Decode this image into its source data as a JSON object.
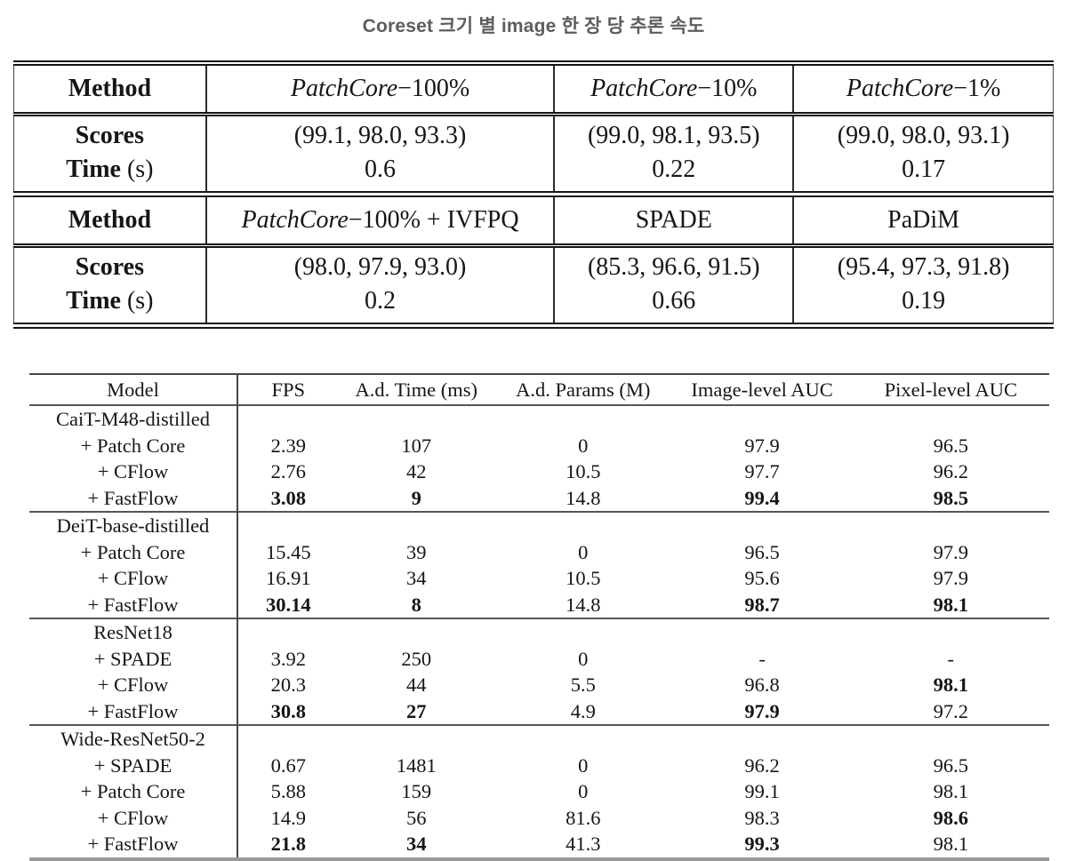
{
  "title": "Coreset 크기 별 image 한 장 당 추론 속도",
  "table1": {
    "row_labels": {
      "method": "Method",
      "scores": "Scores",
      "time": "Time",
      "time_unit": " (s)"
    },
    "sections": [
      {
        "columns": [
          {
            "method_italic": "PatchCore",
            "method_rest": "−100%",
            "scores": "(99.1, 98.0, 93.3)",
            "time": "0.6"
          },
          {
            "method_italic": "PatchCore",
            "method_rest": "−10%",
            "scores": "(99.0, 98.1, 93.5)",
            "time": "0.22"
          },
          {
            "method_italic": "PatchCore",
            "method_rest": "−1%",
            "scores": "(99.0, 98.0, 93.1)",
            "time": "0.17"
          }
        ]
      },
      {
        "columns": [
          {
            "method_italic": "PatchCore",
            "method_rest": "−100% + IVFPQ",
            "scores": "(98.0, 97.9, 93.0)",
            "time": "0.2"
          },
          {
            "method_italic": "",
            "method_rest": "SPADE",
            "scores": "(85.3, 96.6, 91.5)",
            "time": "0.66"
          },
          {
            "method_italic": "",
            "method_rest": "PaDiM",
            "scores": "(95.4, 97.3, 91.8)",
            "time": "0.19"
          }
        ]
      }
    ]
  },
  "table2": {
    "headers": [
      "Model",
      "FPS",
      "A.d. Time (ms)",
      "A.d. Params (M)",
      "Image-level AUC",
      "Pixel-level AUC"
    ],
    "groups": [
      {
        "name": "CaiT-M48-distilled",
        "rows": [
          {
            "model": "+ Patch Core",
            "cells": [
              {
                "v": "2.39"
              },
              {
                "v": "107"
              },
              {
                "v": "0"
              },
              {
                "v": "97.9"
              },
              {
                "v": "96.5"
              }
            ]
          },
          {
            "model": "+ CFlow",
            "cells": [
              {
                "v": "2.76"
              },
              {
                "v": "42"
              },
              {
                "v": "10.5"
              },
              {
                "v": "97.7"
              },
              {
                "v": "96.2"
              }
            ]
          },
          {
            "model": "+ FastFlow",
            "cells": [
              {
                "v": "3.08",
                "b": true
              },
              {
                "v": "9",
                "b": true
              },
              {
                "v": "14.8"
              },
              {
                "v": "99.4",
                "b": true
              },
              {
                "v": "98.5",
                "b": true
              }
            ]
          }
        ]
      },
      {
        "name": "DeiT-base-distilled",
        "rows": [
          {
            "model": "+ Patch Core",
            "cells": [
              {
                "v": "15.45"
              },
              {
                "v": "39"
              },
              {
                "v": "0"
              },
              {
                "v": "96.5"
              },
              {
                "v": "97.9"
              }
            ]
          },
          {
            "model": "+ CFlow",
            "cells": [
              {
                "v": "16.91"
              },
              {
                "v": "34"
              },
              {
                "v": "10.5"
              },
              {
                "v": "95.6"
              },
              {
                "v": "97.9"
              }
            ]
          },
          {
            "model": "+ FastFlow",
            "cells": [
              {
                "v": "30.14",
                "b": true
              },
              {
                "v": "8",
                "b": true
              },
              {
                "v": "14.8"
              },
              {
                "v": "98.7",
                "b": true
              },
              {
                "v": "98.1",
                "b": true
              }
            ]
          }
        ]
      },
      {
        "name": "ResNet18",
        "rows": [
          {
            "model": "+ SPADE",
            "cells": [
              {
                "v": "3.92"
              },
              {
                "v": "250"
              },
              {
                "v": "0"
              },
              {
                "v": "-"
              },
              {
                "v": "-"
              }
            ]
          },
          {
            "model": "+ CFlow",
            "cells": [
              {
                "v": "20.3"
              },
              {
                "v": "44"
              },
              {
                "v": "5.5"
              },
              {
                "v": "96.8"
              },
              {
                "v": "98.1",
                "b": true
              }
            ]
          },
          {
            "model": "+ FastFlow",
            "cells": [
              {
                "v": "30.8",
                "b": true
              },
              {
                "v": "27",
                "b": true
              },
              {
                "v": "4.9"
              },
              {
                "v": "97.9",
                "b": true
              },
              {
                "v": "97.2"
              }
            ]
          }
        ]
      },
      {
        "name": "Wide-ResNet50-2",
        "rows": [
          {
            "model": "+ SPADE",
            "cells": [
              {
                "v": "0.67"
              },
              {
                "v": "1481"
              },
              {
                "v": "0"
              },
              {
                "v": "96.2"
              },
              {
                "v": "96.5"
              }
            ]
          },
          {
            "model": "+ Patch Core",
            "cells": [
              {
                "v": "5.88"
              },
              {
                "v": "159"
              },
              {
                "v": "0"
              },
              {
                "v": "99.1"
              },
              {
                "v": "98.1"
              }
            ]
          },
          {
            "model": "+ CFlow",
            "cells": [
              {
                "v": "14.9"
              },
              {
                "v": "56"
              },
              {
                "v": "81.6"
              },
              {
                "v": "98.3"
              },
              {
                "v": "98.6",
                "b": true
              }
            ]
          },
          {
            "model": "+ FastFlow",
            "cells": [
              {
                "v": "21.8",
                "b": true
              },
              {
                "v": "34",
                "b": true
              },
              {
                "v": "41.3"
              },
              {
                "v": "99.3",
                "b": true
              },
              {
                "v": "98.1"
              }
            ]
          }
        ]
      }
    ]
  }
}
